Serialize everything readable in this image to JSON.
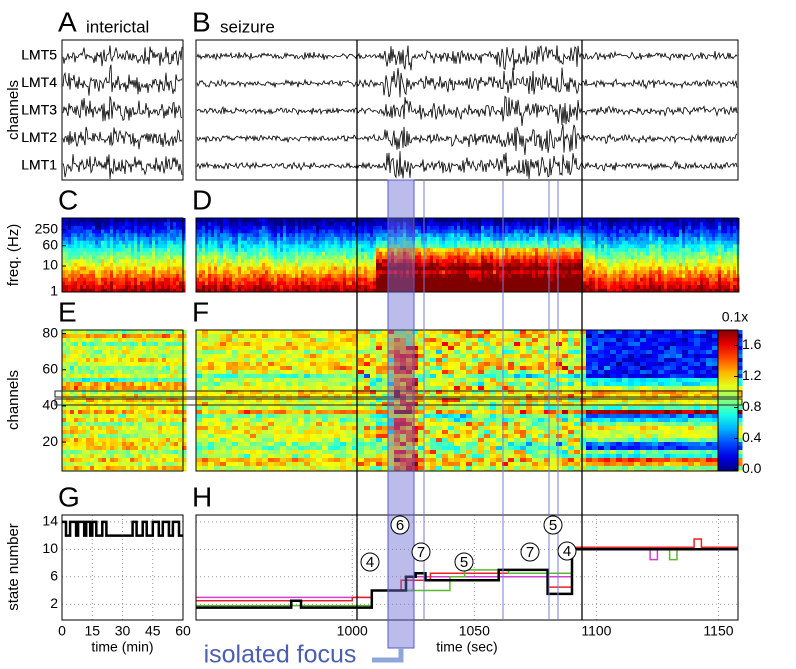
{
  "panels": {
    "A": {
      "letter": "A",
      "title": "interictal"
    },
    "B": {
      "letter": "B",
      "title": "seizure"
    },
    "C": {
      "letter": "C"
    },
    "D": {
      "letter": "D"
    },
    "E": {
      "letter": "E"
    },
    "F": {
      "letter": "F"
    },
    "G": {
      "letter": "G"
    },
    "H": {
      "letter": "H"
    }
  },
  "eeg": {
    "ylabel": "channels",
    "channels": [
      "LMT5",
      "LMT4",
      "LMT3",
      "LMT2",
      "LMT1"
    ]
  },
  "spectrogram": {
    "ylabel": "freq. (Hz)",
    "ylim": [
      1,
      700
    ],
    "yticks": [
      250,
      60,
      10,
      1
    ],
    "log_scale": true
  },
  "channel_map": {
    "ylabel": "channels",
    "ylim": [
      4,
      82
    ],
    "yticks": [
      20,
      40,
      60,
      80
    ]
  },
  "colorbar": {
    "label": "0.1x",
    "ylim": [
      -0.02,
      1.8
    ],
    "ticks": [
      {
        "value": 0,
        "label": "0.0"
      },
      0.4,
      0.8,
      1.2,
      1.6
    ]
  },
  "chart_data": [
    {
      "type": "line",
      "ylabel": "state number",
      "xlabel": "time (min)",
      "xlim": [
        0,
        60
      ],
      "xticks": [
        0,
        15,
        30,
        45,
        60
      ],
      "ylim": [
        -0.3,
        15
      ],
      "yticks": [
        2,
        6,
        10,
        14
      ],
      "grid": true,
      "series": [
        {
          "color": "#000000",
          "x": [
            0,
            2,
            2,
            4,
            4,
            7,
            7,
            8,
            8,
            11,
            11,
            12,
            12,
            14,
            14,
            15,
            15,
            17,
            17,
            20,
            20,
            22,
            22,
            35,
            35,
            37,
            37,
            40,
            40,
            42,
            42,
            45,
            45,
            48,
            48,
            50,
            50,
            53,
            53,
            55,
            55,
            58,
            58,
            60
          ],
          "values": [
            14,
            14,
            12,
            12,
            14,
            14,
            12,
            12,
            14,
            14,
            12,
            12,
            14,
            14,
            12,
            12,
            14,
            14,
            12,
            12,
            14,
            14,
            12,
            12,
            14,
            14,
            12,
            12,
            14,
            14,
            12,
            12,
            14,
            14,
            12,
            12,
            14,
            14,
            12,
            12,
            14,
            14,
            12,
            12
          ]
        }
      ]
    },
    {
      "type": "line",
      "xlabel": "time (sec)",
      "xlim": [
        936,
        1158
      ],
      "xticks": [
        1000,
        1050,
        1100,
        1150
      ],
      "ylim": [
        -0.3,
        15
      ],
      "yticks": [
        2,
        6,
        10,
        14
      ],
      "grid": true,
      "series": [
        {
          "color": "#d33fd0",
          "x": [
            936,
            1008,
            1008,
            1025,
            1025,
            1090,
            1090,
            1122,
            1122,
            1125,
            1125,
            1158
          ],
          "values": [
            3,
            3,
            4,
            4,
            6,
            6,
            10,
            10,
            8.5,
            8.5,
            10,
            10
          ]
        },
        {
          "color": "#e8202a",
          "x": [
            936,
            1000,
            1000,
            1008,
            1008,
            1020,
            1020,
            1032,
            1032,
            1080,
            1080,
            1090,
            1090,
            1140,
            1140,
            1143,
            1143,
            1158
          ],
          "values": [
            2.5,
            2.5,
            3,
            3,
            4,
            4,
            5.5,
            5.5,
            6.5,
            6.5,
            4.5,
            4.5,
            10.3,
            10.3,
            11.5,
            11.5,
            10.3,
            10.3
          ]
        },
        {
          "color": "#5cb82e",
          "x": [
            936,
            1008,
            1008,
            1040,
            1040,
            1046,
            1046,
            1064,
            1064,
            1090,
            1090,
            1130,
            1130,
            1133,
            1133,
            1158
          ],
          "values": [
            1.8,
            1.8,
            4,
            4,
            6,
            6,
            7,
            7,
            6.5,
            6.5,
            10,
            10,
            8.5,
            8.5,
            10,
            10
          ]
        },
        {
          "color": "#000000",
          "x": [
            936,
            975,
            975,
            979,
            979,
            1008,
            1008,
            1022,
            1022,
            1026,
            1026,
            1030,
            1030,
            1060,
            1060,
            1080,
            1080,
            1090,
            1090,
            1158
          ],
          "values": [
            1.5,
            1.5,
            2.5,
            2.5,
            1.5,
            1.5,
            4,
            4,
            6,
            6,
            6.5,
            6.5,
            5.5,
            5.5,
            7,
            7,
            3.5,
            3.5,
            10,
            10
          ]
        }
      ]
    }
  ],
  "state_annotations": [
    4,
    6,
    7,
    5,
    7,
    5,
    4
  ],
  "focus_label": "isolated focus"
}
